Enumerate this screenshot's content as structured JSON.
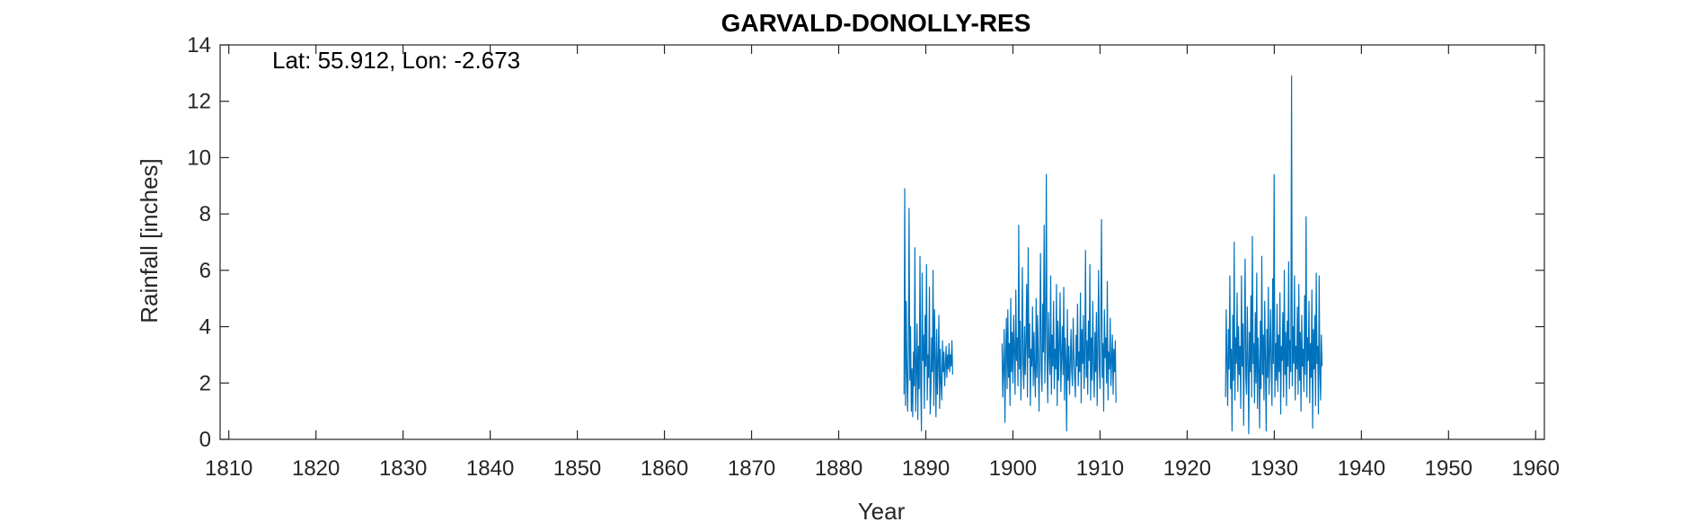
{
  "chart_data": {
    "type": "line",
    "title": "GARVALD-DONOLLY-RES",
    "xlabel": "Year",
    "ylabel": "Rainfall [inches]",
    "annotation": "Lat: 55.912, Lon: -2.673",
    "xlim": [
      1809,
      1961
    ],
    "ylim": [
      0,
      14
    ],
    "xticks": [
      1810,
      1820,
      1830,
      1840,
      1850,
      1860,
      1870,
      1880,
      1890,
      1900,
      1910,
      1920,
      1930,
      1940,
      1950,
      1960
    ],
    "yticks": [
      0,
      2,
      4,
      6,
      8,
      10,
      12,
      14
    ],
    "grid": false,
    "series_color": "#0072BD",
    "series": [
      {
        "segments": [
          {
            "start_year": 1887.5,
            "start_month": 1,
            "values": [
              1.6,
              8.9,
              1.2,
              4.9,
              2.3,
              1.0,
              3.2,
              8.2,
              2.1,
              4.0,
              1.0,
              2.5,
              0.8,
              3.1,
              1.9,
              6.8,
              1.0,
              2.4,
              4.1,
              0.7,
              3.3,
              1.8,
              6.5,
              2.0,
              0.3,
              5.9,
              2.8,
              3.7,
              1.1,
              4.4,
              2.6,
              6.2,
              1.4,
              3.0,
              2.2,
              5.4,
              0.9,
              1.7,
              3.6,
              2.4,
              6.0,
              1.2,
              4.6,
              2.9,
              0.8,
              3.9,
              1.6,
              2.7,
              4.4,
              1.1,
              3.2,
              2.0,
              1.4,
              3.5,
              2.4,
              3.1,
              1.9,
              2.6,
              3.3,
              2.2,
              3.0,
              2.5,
              3.4,
              2.4,
              3.0,
              2.6,
              3.5,
              2.3
            ]
          },
          {
            "start_year": 1898.75,
            "start_month": 10,
            "values": [
              3.4,
              1.5,
              2.6,
              3.9,
              0.6,
              2.9,
              4.3,
              1.8,
              4.6,
              2.2,
              3.4,
              1.2,
              5.0,
              2.4,
              3.8,
              2.0,
              4.4,
              3.1,
              1.6,
              5.3,
              2.8,
              3.6,
              1.9,
              7.6,
              2.5,
              4.2,
              1.4,
              3.0,
              6.1,
              2.7,
              1.8,
              4.0,
              2.3,
              3.5,
              5.5,
              1.5,
              6.8,
              2.9,
              4.1,
              1.2,
              3.2,
              2.6,
              4.7,
              1.9,
              3.8,
              2.4,
              1.5,
              5.0,
              2.2,
              4.4,
              2.9,
              1.0,
              3.6,
              6.6,
              2.5,
              1.7,
              4.8,
              3.1,
              7.6,
              2.0,
              3.9,
              9.4,
              2.8,
              1.3,
              4.5,
              3.0,
              2.3,
              5.8,
              1.6,
              3.7,
              2.6,
              4.9,
              1.8,
              3.2,
              2.5,
              5.5,
              1.2,
              4.2,
              2.1,
              3.4,
              5.2,
              1.7,
              2.9,
              4.0,
              2.3,
              5.4,
              1.4,
              3.6,
              2.8,
              0.3,
              4.6,
              2.1,
              3.3,
              1.6,
              2.7,
              3.9,
              2.4,
              1.9,
              4.3,
              3.0,
              2.2,
              1.5,
              3.7,
              2.6,
              4.8,
              1.9,
              3.1,
              2.4,
              5.2,
              1.3,
              3.9,
              2.7,
              4.4,
              1.8,
              3.0,
              6.7,
              2.2,
              3.5,
              1.6,
              4.2,
              2.8,
              6.2,
              1.4,
              3.6,
              2.1,
              4.9,
              2.7,
              1.5,
              3.8,
              2.4,
              4.5,
              1.2,
              3.3,
              6.0,
              2.6,
              1.8,
              4.1,
              7.8,
              2.2,
              3.4,
              1.0,
              4.6,
              2.9,
              3.6,
              2.0,
              5.6,
              1.4,
              3.1,
              2.5,
              4.3,
              1.9,
              2.8,
              3.7,
              1.6,
              3.2,
              2.4,
              3.5,
              1.3
            ]
          },
          {
            "start_year": 1924.4,
            "start_month": 5,
            "values": [
              1.5,
              4.6,
              2.8,
              1.2,
              3.9,
              2.5,
              5.8,
              1.8,
              3.2,
              0.3,
              4.4,
              2.1,
              7.0,
              1.4,
              3.6,
              2.7,
              5.2,
              1.7,
              4.0,
              2.3,
              3.3,
              1.1,
              5.8,
              2.6,
              4.1,
              0.5,
              3.5,
              6.4,
              2.2,
              1.6,
              4.7,
              2.9,
              0.2,
              3.8,
              2.4,
              5.1,
              1.5,
              7.2,
              2.7,
              3.4,
              1.3,
              4.5,
              2.0,
              5.9,
              1.1,
              3.6,
              2.5,
              0.4,
              4.2,
              1.8,
              6.5,
              2.3,
              3.7,
              1.4,
              4.9,
              2.8,
              0.3,
              3.9,
              2.2,
              5.4,
              1.6,
              3.0,
              4.6,
              2.5,
              1.2,
              5.7,
              2.7,
              9.4,
              1.5,
              3.4,
              2.1,
              4.8,
              1.7,
              3.7,
              2.4,
              5.2,
              0.9,
              3.3,
              2.8,
              4.5,
              1.5,
              6.0,
              2.3,
              3.8,
              1.2,
              4.2,
              2.6,
              6.3,
              1.8,
              3.5,
              2.4,
              12.9,
              1.9,
              4.0,
              2.7,
              5.8,
              1.4,
              3.3,
              2.5,
              4.7,
              1.6,
              5.5,
              2.1,
              3.8,
              1.0,
              4.4,
              2.6,
              3.2,
              1.7,
              5.1,
              2.3,
              7.9,
              1.5,
              3.6,
              2.8,
              4.9,
              1.3,
              3.4,
              2.2,
              5.3,
              0.4,
              3.9,
              2.5,
              4.4,
              1.2,
              5.9,
              2.7,
              3.3,
              0.9,
              5.8,
              2.4,
              1.4,
              3.7,
              2.6
            ]
          }
        ]
      }
    ]
  }
}
